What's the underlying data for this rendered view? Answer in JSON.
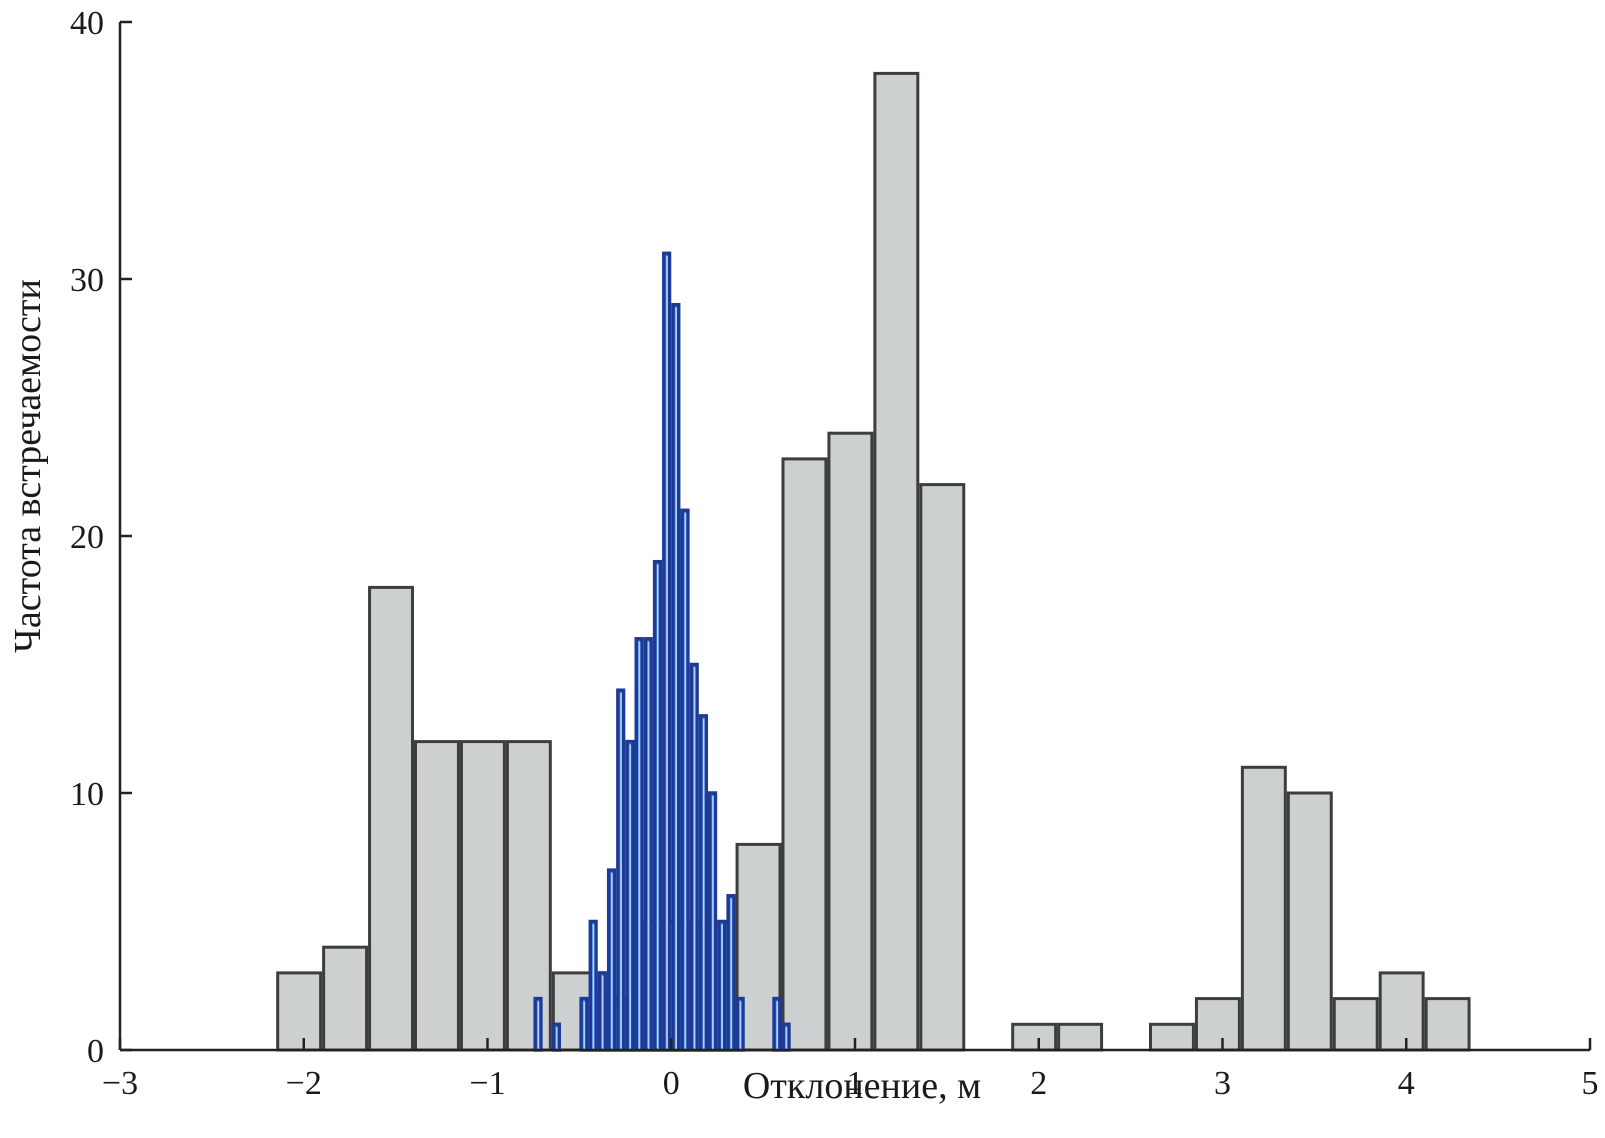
{
  "chart_data": {
    "type": "bar",
    "xlabel": "Отклонение, м",
    "ylabel": "Частота встречаемости",
    "xlim": [
      -3,
      5
    ],
    "ylim": [
      0,
      40
    ],
    "xticks": [
      -3,
      -2,
      -1,
      0,
      1,
      2,
      3,
      4,
      5
    ],
    "xtick_labels": [
      "−3",
      "−2",
      "−1",
      "0",
      "1",
      "2",
      "3",
      "4",
      "5"
    ],
    "yticks": [
      0,
      10,
      20,
      30,
      40
    ],
    "ytick_labels": [
      "0",
      "10",
      "20",
      "30",
      "40"
    ],
    "grid": false,
    "series": [
      {
        "color": "#cdd0d0",
        "edge_color": "#3d3d3d",
        "bin_width": 0.25,
        "x_start": [
          -2.15,
          -1.9,
          -1.65,
          -1.4,
          -1.15,
          -0.9,
          -0.65,
          -0.4,
          -0.15,
          0.1,
          0.35,
          0.6,
          0.85,
          1.1,
          1.35,
          1.6,
          1.85,
          2.1,
          2.35,
          2.6,
          2.85,
          3.1,
          3.35,
          3.6,
          3.85,
          4.1
        ],
        "values": [
          3,
          4,
          18,
          12,
          12,
          12,
          3,
          2,
          5,
          5,
          8,
          23,
          24,
          38,
          22,
          0,
          1,
          1,
          0,
          1,
          2,
          11,
          10,
          2,
          3,
          2
        ]
      },
      {
        "color": "#4d8fe0",
        "edge_color": "#1f3a96",
        "bin_width": 0.05,
        "x_start": [
          -0.75,
          -0.7,
          -0.65,
          -0.6,
          -0.55,
          -0.5,
          -0.45,
          -0.4,
          -0.35,
          -0.3,
          -0.25,
          -0.2,
          -0.15,
          -0.1,
          -0.05,
          0.0,
          0.05,
          0.1,
          0.15,
          0.2,
          0.25,
          0.3,
          0.35,
          0.4,
          0.45,
          0.5,
          0.55,
          0.6,
          0.65
        ],
        "values": [
          2,
          0,
          1,
          0,
          0,
          2,
          5,
          3,
          7,
          14,
          12,
          16,
          16,
          19,
          31,
          29,
          21,
          15,
          13,
          10,
          5,
          6,
          2,
          0,
          0,
          0,
          2,
          1,
          0
        ]
      }
    ]
  }
}
